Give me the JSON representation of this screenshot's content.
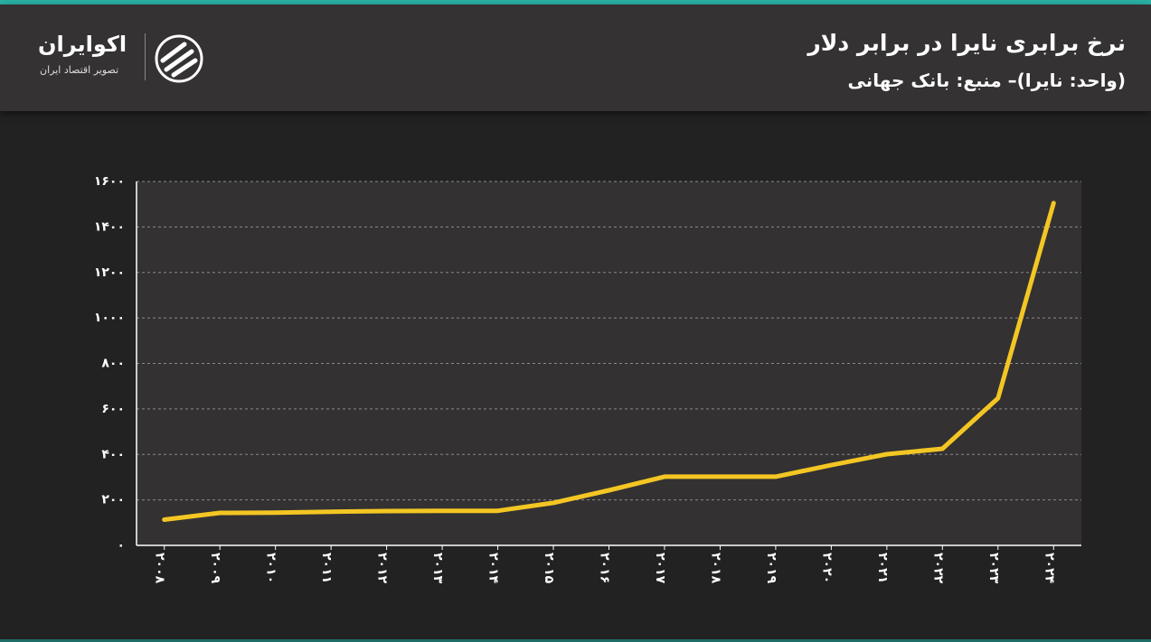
{
  "logo": {
    "name": "اکوایران",
    "tagline": "تصویر اقتصاد ایران"
  },
  "chart_data": {
    "type": "line",
    "title": "نرخ برابری نایرا در برابر دلار",
    "subtitle": "(واحد: نایرا)– منبع: بانک جهانی",
    "categories": [
      "۲۰۰۸",
      "۲۰۰۹",
      "۲۰۱۰",
      "۲۰۱۱",
      "۲۰۱۲",
      "۲۰۱۳",
      "۲۰۱۴",
      "۲۰۱۵",
      "۲۰۱۶",
      "۲۰۱۷",
      "۲۰۱۸",
      "۲۰۱۹",
      "۲۰۲۰",
      "۲۰۲۱",
      "۲۰۲۲",
      "۲۰۲۳",
      "۲۰۲۴"
    ],
    "values": [
      113,
      143,
      144,
      148,
      151,
      152,
      152,
      187,
      242,
      302,
      302,
      302,
      353,
      401,
      425,
      647,
      1505
    ],
    "color": "#f3c623",
    "ylim": [
      0,
      1600
    ],
    "yticks": [
      {
        "value": 0,
        "label": "۰"
      },
      {
        "value": 200,
        "label": "۲۰۰"
      },
      {
        "value": 400,
        "label": "۴۰۰"
      },
      {
        "value": 600,
        "label": "۶۰۰"
      },
      {
        "value": 800,
        "label": "۸۰۰"
      },
      {
        "value": 1000,
        "label": "۱۰۰۰"
      },
      {
        "value": 1200,
        "label": "۱۲۰۰"
      },
      {
        "value": 1400,
        "label": "۱۴۰۰"
      },
      {
        "value": 1600,
        "label": "۱۶۰۰"
      }
    ],
    "grid": true
  }
}
